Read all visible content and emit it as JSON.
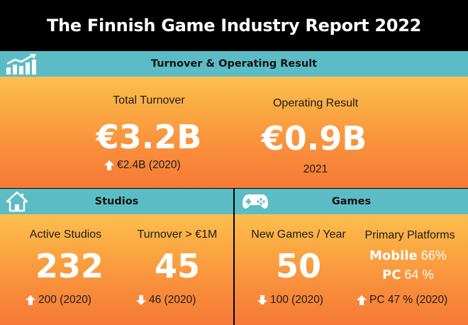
{
  "title": "The Finnish Game Industry Report 2022",
  "sections": {
    "turnover": {
      "header": "Turnover & Operating Result",
      "icon": "bar-chart-growth-icon",
      "total_turnover": {
        "label": "Total Turnover",
        "value": "€3.2B",
        "trend": "up",
        "comparison": "€2.4B (2020)"
      },
      "operating_result": {
        "label": "Operating Result",
        "value": "€0.9B",
        "note": "2021"
      }
    },
    "studios": {
      "header": "Studios",
      "icon": "house-icon",
      "active": {
        "label": "Active Studios",
        "value": "232",
        "trend": "up",
        "comparison": "200 (2020)"
      },
      "over_1m": {
        "label": "Turnover > €1M",
        "value": "45",
        "trend": "down",
        "comparison": "46 (2020)"
      }
    },
    "games": {
      "header": "Games",
      "icon": "gamepad-icon",
      "new_games": {
        "label": "New Games / Year",
        "value": "50",
        "trend": "down",
        "comparison": "100 (2020)"
      },
      "platforms": {
        "label": "Primary Platforms",
        "mobile_name": "Mobile",
        "mobile_share": "66%",
        "pc_name": "PC",
        "pc_share": "64 %",
        "trend": "up",
        "comparison": "PC 47 % (2020)"
      }
    }
  },
  "colors": {
    "teal": "#5cbcc5",
    "gradient_top": "#fdd15c",
    "gradient_bottom": "#f57a37",
    "background": "#000000"
  }
}
